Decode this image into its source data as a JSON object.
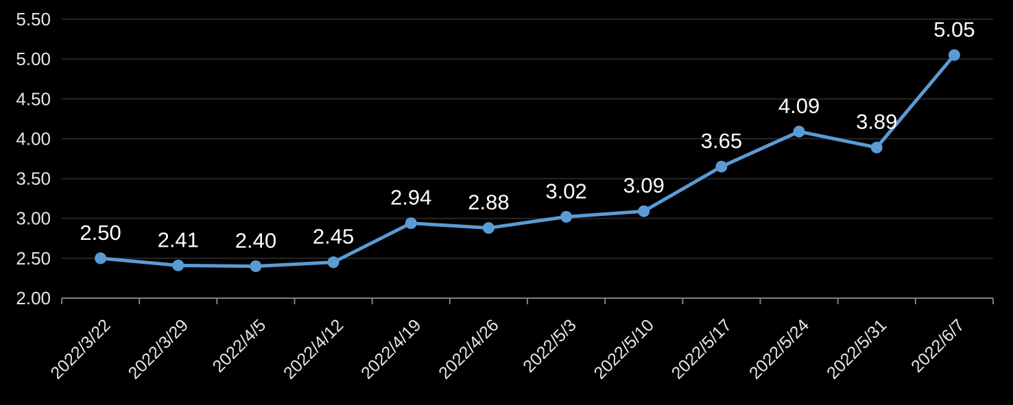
{
  "chart_data": {
    "type": "line",
    "title": "",
    "xlabel": "",
    "ylabel": "",
    "categories": [
      "2022/3/22",
      "2022/3/29",
      "2022/4/5",
      "2022/4/12",
      "2022/4/19",
      "2022/4/26",
      "2022/5/3",
      "2022/5/10",
      "2022/5/17",
      "2022/5/24",
      "2022/5/31",
      "2022/6/7"
    ],
    "values": [
      2.5,
      2.41,
      2.4,
      2.45,
      2.94,
      2.88,
      3.02,
      3.09,
      3.65,
      4.09,
      3.89,
      5.05
    ],
    "data_labels": [
      "2.50",
      "2.41",
      "2.40",
      "2.45",
      "2.94",
      "2.88",
      "3.02",
      "3.09",
      "3.65",
      "4.09",
      "3.89",
      "5.05"
    ],
    "ylim": [
      2.0,
      5.5
    ],
    "ytick_step": 0.5,
    "ytick_labels": [
      "2.00",
      "2.50",
      "3.00",
      "3.50",
      "4.00",
      "4.50",
      "5.00",
      "5.50"
    ],
    "grid": true,
    "legend_position": "none",
    "colors": {
      "background": "#000000",
      "series": "#5b9bd5",
      "gridline": "#262626",
      "axis_line": "#7f7f7f",
      "axis_tick_label": "#e6e6e6",
      "data_label": "#ffffff"
    }
  }
}
